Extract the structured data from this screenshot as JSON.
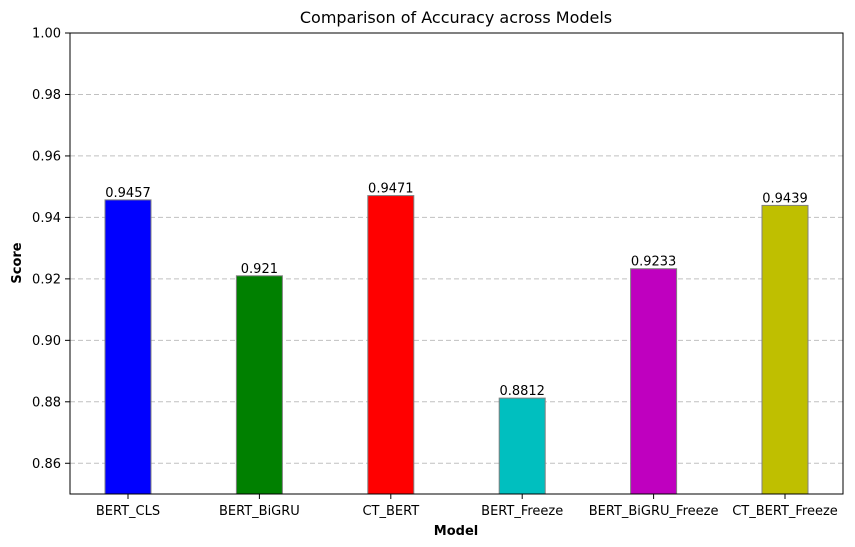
{
  "chart_data": {
    "type": "bar",
    "title": "Comparison of Accuracy across Models",
    "xlabel": "Model",
    "ylabel": "Score",
    "categories": [
      "BERT_CLS",
      "BERT_BiGRU",
      "CT_BERT",
      "BERT_Freeze",
      "BERT_BiGRU_Freeze",
      "CT_BERT_Freeze"
    ],
    "values": [
      0.9457,
      0.921,
      0.9471,
      0.8812,
      0.9233,
      0.9439
    ],
    "value_labels": [
      "0.9457",
      "0.921",
      "0.9471",
      "0.8812",
      "0.9233",
      "0.9439"
    ],
    "colors": [
      "#0000ff",
      "#008000",
      "#ff0000",
      "#00bfbf",
      "#bf00bf",
      "#bfbf00"
    ],
    "edge_color": "#808080",
    "ylim": [
      0.85,
      1.0
    ],
    "yticks": [
      0.86,
      0.88,
      0.9,
      0.92,
      0.94,
      0.96,
      0.98,
      1.0
    ],
    "ytick_labels": [
      "0.86",
      "0.88",
      "0.90",
      "0.92",
      "0.94",
      "0.96",
      "0.98",
      "1.00"
    ],
    "grid": "y-dashed"
  }
}
